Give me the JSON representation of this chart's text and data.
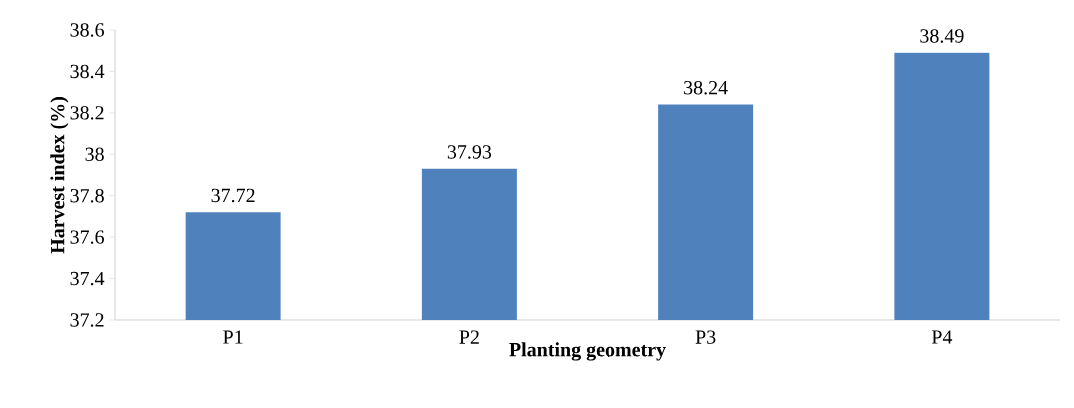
{
  "chart_data": {
    "type": "bar",
    "xlabel": "Planting geometry",
    "ylabel": "Harvest index (%)",
    "categories": [
      "P1",
      "P2",
      "P3",
      "P4"
    ],
    "values": [
      37.72,
      37.93,
      38.24,
      38.49
    ],
    "color": "#4f81bd",
    "ylim": [
      37.2,
      38.6
    ],
    "yticks": [
      37.2,
      37.4,
      37.6,
      37.8,
      38,
      38.2,
      38.4,
      38.6
    ],
    "data_labels": true
  }
}
